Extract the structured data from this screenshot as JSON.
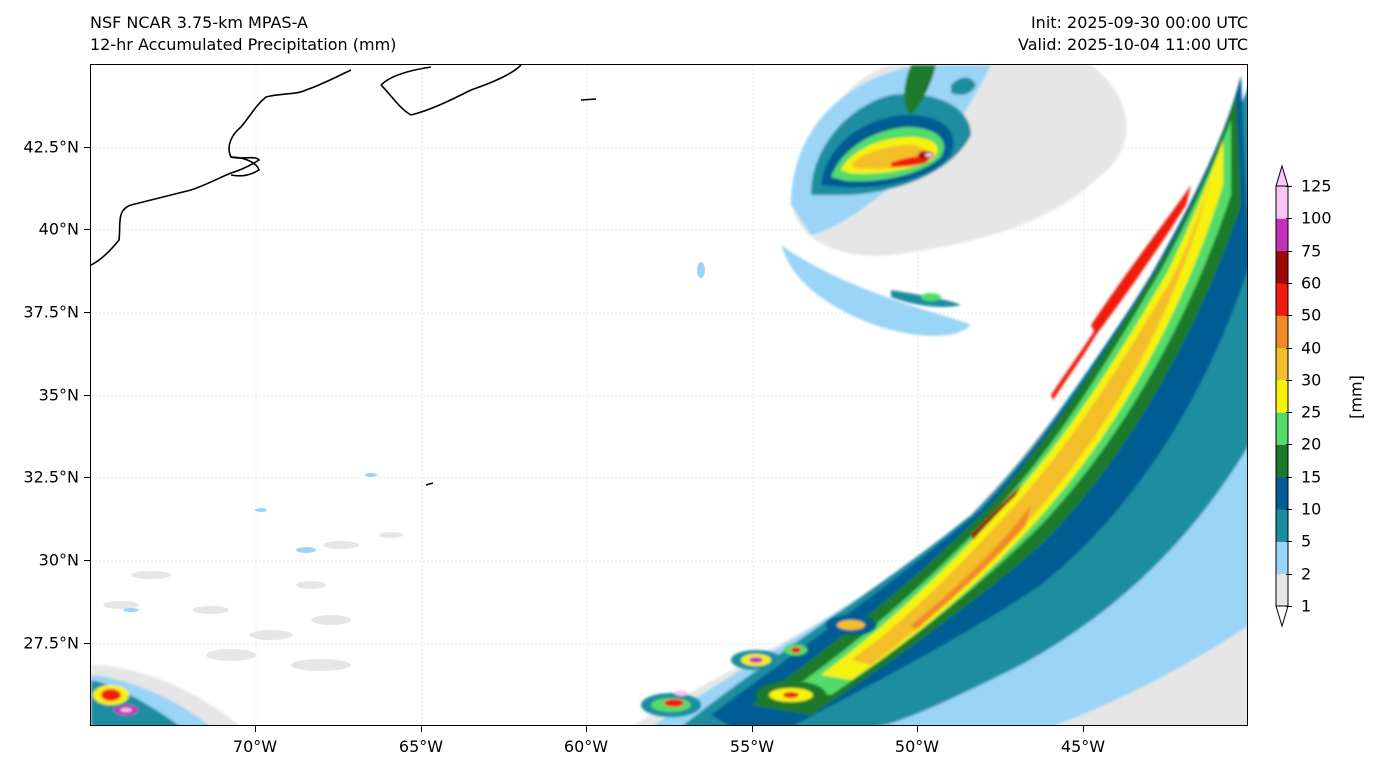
{
  "header": {
    "title_line1": "NSF NCAR 3.75-km MPAS-A",
    "title_line2": "12-hr Accumulated Precipitation (mm)",
    "init": "Init: 2025-09-30 00:00 UTC",
    "valid": "Valid: 2025-10-04 11:00 UTC"
  },
  "map": {
    "extent": {
      "lon_min": -75,
      "lon_max": -40,
      "lat_min": 25,
      "lat_max": 45
    },
    "lat_labels": [
      "42.5°N",
      "40°N",
      "37.5°N",
      "35°N",
      "32.5°N",
      "30°N",
      "27.5°N"
    ],
    "lon_labels": [
      "70°W",
      "65°W",
      "60°W",
      "55°W",
      "50°W",
      "45°W"
    ],
    "gridlines": true
  },
  "colorbar": {
    "unit": "[mm]",
    "levels": [
      "1",
      "2",
      "5",
      "10",
      "15",
      "20",
      "25",
      "30",
      "40",
      "50",
      "60",
      "75",
      "100",
      "125"
    ],
    "colors": [
      "#e6e6e6",
      "#9ad4f7",
      "#1a8ea0",
      "#065d94",
      "#1c7a2c",
      "#55db6a",
      "#f6f20a",
      "#f4bd2a",
      "#f08a28",
      "#ef1a10",
      "#9c0a0a",
      "#c231b8",
      "#f8c6f6"
    ]
  }
}
